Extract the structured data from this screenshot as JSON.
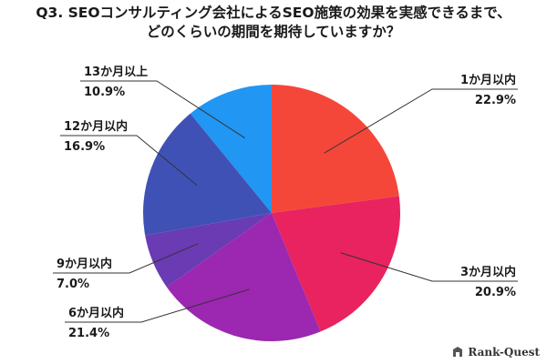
{
  "chart_data": {
    "type": "pie",
    "title_lines": [
      "Q3. SEOコンサルティング会社によるSEO施策の効果を実感できるまで、",
      "どのくらいの期間を期待していますか？"
    ],
    "slices": [
      {
        "label": "1か月以内",
        "value": 22.9,
        "value_label": "22.9%",
        "color": "#f4473a"
      },
      {
        "label": "3か月以内",
        "value": 20.9,
        "value_label": "20.9%",
        "color": "#e8235f"
      },
      {
        "label": "6か月以内",
        "value": 21.4,
        "value_label": "21.4%",
        "color": "#9c27b0"
      },
      {
        "label": "9か月以内",
        "value": 7.0,
        "value_label": "7.0%",
        "color": "#6a3bb3"
      },
      {
        "label": "12か月以内",
        "value": 16.9,
        "value_label": "16.9%",
        "color": "#3f51b5"
      },
      {
        "label": "13か月以上",
        "value": 10.9,
        "value_label": "10.9%",
        "color": "#2196f3"
      }
    ],
    "start": "12 o'clock, clockwise"
  },
  "brand": {
    "name": "Rank-Quest",
    "icon": "rank-quest-logo-icon"
  }
}
